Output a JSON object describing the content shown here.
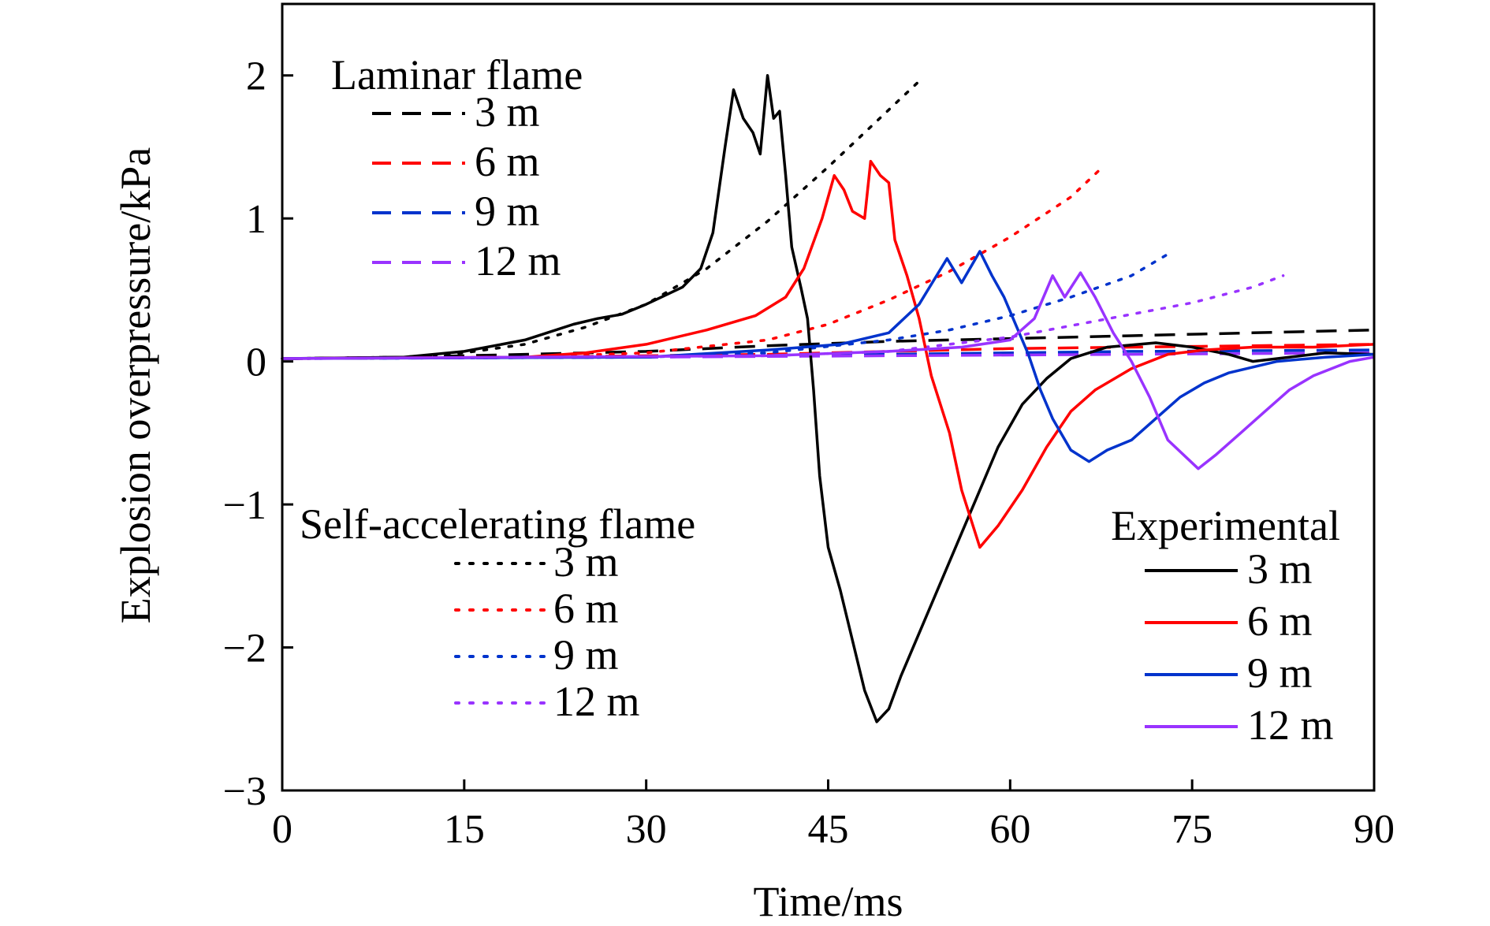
{
  "chart_data": {
    "type": "line",
    "xlabel": "Time/ms",
    "ylabel": "Explosion overpressure/kPa",
    "xlim": [
      0,
      90
    ],
    "ylim": [
      -3,
      2.5
    ],
    "xticks": [
      0,
      15,
      30,
      45,
      60,
      75,
      90
    ],
    "yticks": [
      -3,
      -2,
      -1,
      0,
      1,
      2
    ],
    "ytick_labels": [
      "−3",
      "−2",
      "−1",
      "0",
      "1",
      "2"
    ],
    "grid": false,
    "legend_groups": [
      {
        "title": "Laminar flame",
        "style": "dashed",
        "placement": "top-left",
        "entries": [
          {
            "label": "3 m",
            "color": "#000000"
          },
          {
            "label": "6 m",
            "color": "#ff0000"
          },
          {
            "label": "9 m",
            "color": "#0033cc"
          },
          {
            "label": "12 m",
            "color": "#9933ff"
          }
        ]
      },
      {
        "title": "Self-accelerating flame",
        "style": "dotted",
        "placement": "lower-left",
        "entries": [
          {
            "label": "3 m",
            "color": "#000000"
          },
          {
            "label": "6 m",
            "color": "#ff0000"
          },
          {
            "label": "9 m",
            "color": "#0033cc"
          },
          {
            "label": "12 m",
            "color": "#9933ff"
          }
        ]
      },
      {
        "title": "Experimental",
        "style": "solid",
        "placement": "lower-right",
        "entries": [
          {
            "label": "3 m",
            "color": "#000000"
          },
          {
            "label": "6 m",
            "color": "#ff0000"
          },
          {
            "label": "9 m",
            "color": "#0033cc"
          },
          {
            "label": "12 m",
            "color": "#9933ff"
          }
        ]
      }
    ],
    "series": [
      {
        "group": "Laminar flame",
        "distance": "3 m",
        "style": "dashed",
        "color": "#000000",
        "points": [
          [
            0,
            0.02
          ],
          [
            10,
            0.03
          ],
          [
            20,
            0.05
          ],
          [
            30,
            0.07
          ],
          [
            40,
            0.11
          ],
          [
            50,
            0.14
          ],
          [
            60,
            0.16
          ],
          [
            70,
            0.18
          ],
          [
            80,
            0.2
          ],
          [
            90,
            0.22
          ]
        ]
      },
      {
        "group": "Laminar flame",
        "distance": "6 m",
        "style": "dashed",
        "color": "#ff0000",
        "points": [
          [
            0,
            0.02
          ],
          [
            20,
            0.03
          ],
          [
            40,
            0.05
          ],
          [
            50,
            0.07
          ],
          [
            60,
            0.09
          ],
          [
            70,
            0.1
          ],
          [
            80,
            0.11
          ],
          [
            90,
            0.12
          ]
        ]
      },
      {
        "group": "Laminar flame",
        "distance": "9 m",
        "style": "dashed",
        "color": "#0033cc",
        "points": [
          [
            0,
            0.02
          ],
          [
            30,
            0.03
          ],
          [
            50,
            0.05
          ],
          [
            70,
            0.07
          ],
          [
            90,
            0.08
          ]
        ]
      },
      {
        "group": "Laminar flame",
        "distance": "12 m",
        "style": "dashed",
        "color": "#9933ff",
        "points": [
          [
            0,
            0.02
          ],
          [
            30,
            0.03
          ],
          [
            50,
            0.04
          ],
          [
            70,
            0.05
          ],
          [
            90,
            0.06
          ]
        ]
      },
      {
        "group": "Self-accelerating flame",
        "distance": "3 m",
        "style": "dotted",
        "color": "#000000",
        "points": [
          [
            0,
            0.02
          ],
          [
            10,
            0.03
          ],
          [
            15,
            0.06
          ],
          [
            20,
            0.12
          ],
          [
            25,
            0.24
          ],
          [
            30,
            0.4
          ],
          [
            35,
            0.65
          ],
          [
            40,
            0.98
          ],
          [
            45,
            1.36
          ],
          [
            50,
            1.76
          ],
          [
            52.5,
            1.96
          ]
        ]
      },
      {
        "group": "Self-accelerating flame",
        "distance": "6 m",
        "style": "dotted",
        "color": "#ff0000",
        "points": [
          [
            0,
            0.02
          ],
          [
            20,
            0.03
          ],
          [
            30,
            0.06
          ],
          [
            40,
            0.15
          ],
          [
            45,
            0.26
          ],
          [
            50,
            0.43
          ],
          [
            55,
            0.63
          ],
          [
            60,
            0.87
          ],
          [
            65,
            1.15
          ],
          [
            67.5,
            1.35
          ]
        ]
      },
      {
        "group": "Self-accelerating flame",
        "distance": "9 m",
        "style": "dotted",
        "color": "#0033cc",
        "points": [
          [
            0,
            0.02
          ],
          [
            30,
            0.03
          ],
          [
            40,
            0.06
          ],
          [
            50,
            0.15
          ],
          [
            55,
            0.22
          ],
          [
            60,
            0.32
          ],
          [
            65,
            0.45
          ],
          [
            70,
            0.6
          ],
          [
            73,
            0.75
          ]
        ]
      },
      {
        "group": "Self-accelerating flame",
        "distance": "12 m",
        "style": "dotted",
        "color": "#9933ff",
        "points": [
          [
            0,
            0.02
          ],
          [
            40,
            0.04
          ],
          [
            50,
            0.07
          ],
          [
            60,
            0.17
          ],
          [
            65,
            0.25
          ],
          [
            70,
            0.33
          ],
          [
            75,
            0.41
          ],
          [
            80,
            0.52
          ],
          [
            82.5,
            0.6
          ]
        ]
      },
      {
        "group": "Experimental",
        "distance": "3 m",
        "style": "solid",
        "color": "#000000",
        "points": [
          [
            0,
            0.02
          ],
          [
            10,
            0.03
          ],
          [
            15,
            0.07
          ],
          [
            20,
            0.15
          ],
          [
            24,
            0.26
          ],
          [
            26,
            0.3
          ],
          [
            28,
            0.33
          ],
          [
            30,
            0.4
          ],
          [
            33,
            0.52
          ],
          [
            34.5,
            0.65
          ],
          [
            35.5,
            0.9
          ],
          [
            36.5,
            1.5
          ],
          [
            37.2,
            1.9
          ],
          [
            38,
            1.7
          ],
          [
            38.8,
            1.6
          ],
          [
            39.4,
            1.45
          ],
          [
            40,
            2.0
          ],
          [
            40.5,
            1.7
          ],
          [
            41,
            1.75
          ],
          [
            41.5,
            1.3
          ],
          [
            42,
            0.8
          ],
          [
            42.8,
            0.5
          ],
          [
            43.3,
            0.3
          ],
          [
            43.8,
            -0.2
          ],
          [
            44.3,
            -0.8
          ],
          [
            45,
            -1.3
          ],
          [
            46,
            -1.6
          ],
          [
            47,
            -1.95
          ],
          [
            48,
            -2.3
          ],
          [
            49,
            -2.52
          ],
          [
            50,
            -2.43
          ],
          [
            51,
            -2.2
          ],
          [
            53,
            -1.8
          ],
          [
            55,
            -1.4
          ],
          [
            57,
            -1.0
          ],
          [
            59,
            -0.6
          ],
          [
            61,
            -0.3
          ],
          [
            63,
            -0.12
          ],
          [
            65,
            0.02
          ],
          [
            68,
            0.1
          ],
          [
            72,
            0.13
          ],
          [
            75,
            0.1
          ],
          [
            78,
            0.05
          ],
          [
            80,
            0.0
          ],
          [
            83,
            0.03
          ],
          [
            86,
            0.06
          ],
          [
            90,
            0.05
          ]
        ]
      },
      {
        "group": "Experimental",
        "distance": "6 m",
        "style": "solid",
        "color": "#ff0000",
        "points": [
          [
            0,
            0.02
          ],
          [
            20,
            0.03
          ],
          [
            25,
            0.06
          ],
          [
            30,
            0.12
          ],
          [
            35,
            0.22
          ],
          [
            39,
            0.32
          ],
          [
            41.5,
            0.45
          ],
          [
            43,
            0.65
          ],
          [
            44.5,
            1.0
          ],
          [
            45.5,
            1.3
          ],
          [
            46.3,
            1.2
          ],
          [
            47,
            1.05
          ],
          [
            48,
            1.0
          ],
          [
            48.5,
            1.4
          ],
          [
            49.3,
            1.3
          ],
          [
            50,
            1.25
          ],
          [
            50.5,
            0.85
          ],
          [
            51.5,
            0.6
          ],
          [
            52.5,
            0.3
          ],
          [
            53.5,
            -0.1
          ],
          [
            55,
            -0.5
          ],
          [
            56,
            -0.9
          ],
          [
            57.5,
            -1.3
          ],
          [
            59,
            -1.15
          ],
          [
            61,
            -0.9
          ],
          [
            63,
            -0.6
          ],
          [
            65,
            -0.35
          ],
          [
            67,
            -0.2
          ],
          [
            70,
            -0.05
          ],
          [
            73,
            0.05
          ],
          [
            76,
            0.08
          ],
          [
            80,
            0.1
          ],
          [
            85,
            0.1
          ],
          [
            90,
            0.12
          ]
        ]
      },
      {
        "group": "Experimental",
        "distance": "9 m",
        "style": "solid",
        "color": "#0033cc",
        "points": [
          [
            0,
            0.02
          ],
          [
            30,
            0.03
          ],
          [
            40,
            0.08
          ],
          [
            46,
            0.12
          ],
          [
            50,
            0.2
          ],
          [
            52.5,
            0.4
          ],
          [
            54.8,
            0.72
          ],
          [
            56,
            0.55
          ],
          [
            57.5,
            0.77
          ],
          [
            58.5,
            0.6
          ],
          [
            59.5,
            0.45
          ],
          [
            60.5,
            0.25
          ],
          [
            61.5,
            0.05
          ],
          [
            62.5,
            -0.2
          ],
          [
            63.5,
            -0.4
          ],
          [
            65,
            -0.62
          ],
          [
            66.5,
            -0.7
          ],
          [
            68,
            -0.62
          ],
          [
            70,
            -0.55
          ],
          [
            72,
            -0.4
          ],
          [
            74,
            -0.25
          ],
          [
            76,
            -0.15
          ],
          [
            78,
            -0.08
          ],
          [
            82,
            0.0
          ],
          [
            86,
            0.03
          ],
          [
            90,
            0.05
          ]
        ]
      },
      {
        "group": "Experimental",
        "distance": "12 m",
        "style": "solid",
        "color": "#9933ff",
        "points": [
          [
            0,
            0.02
          ],
          [
            40,
            0.04
          ],
          [
            50,
            0.07
          ],
          [
            56,
            0.1
          ],
          [
            60,
            0.15
          ],
          [
            62,
            0.3
          ],
          [
            63.5,
            0.6
          ],
          [
            64.5,
            0.45
          ],
          [
            65.8,
            0.62
          ],
          [
            67,
            0.45
          ],
          [
            68.5,
            0.2
          ],
          [
            70,
            0.0
          ],
          [
            71.5,
            -0.25
          ],
          [
            73,
            -0.55
          ],
          [
            75.5,
            -0.75
          ],
          [
            77,
            -0.65
          ],
          [
            79,
            -0.5
          ],
          [
            81,
            -0.35
          ],
          [
            83,
            -0.2
          ],
          [
            85,
            -0.1
          ],
          [
            88,
            0.0
          ],
          [
            90,
            0.03
          ]
        ]
      }
    ]
  }
}
